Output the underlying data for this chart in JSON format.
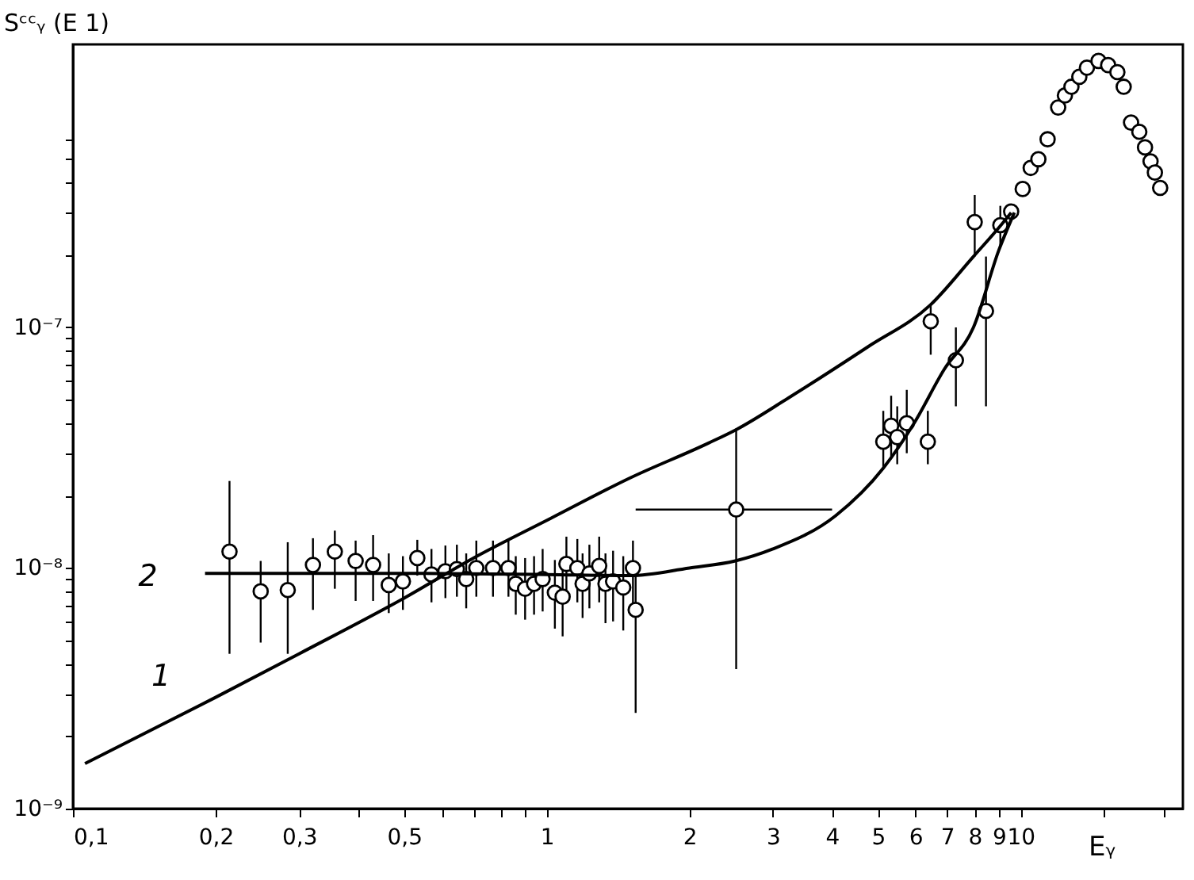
{
  "chart_data": {
    "type": "scatter",
    "xlabel": "Eᵧ",
    "ylabel": "Sᶜᶜᵧ (E 1)",
    "log": "xy",
    "xlim": [
      0.1,
      22
    ],
    "ylim": [
      1e-09,
      1.5e-06
    ],
    "xticks": [
      {
        "value": 0.1,
        "label": "0,1"
      },
      {
        "value": 0.2,
        "label": "0,2"
      },
      {
        "value": 0.3,
        "label": "0,3"
      },
      {
        "value": 0.4,
        "label": null
      },
      {
        "value": 0.5,
        "label": "0,5"
      },
      {
        "value": 0.6,
        "label": null
      },
      {
        "value": 0.7,
        "label": null
      },
      {
        "value": 0.8,
        "label": null
      },
      {
        "value": 0.9,
        "label": null
      },
      1,
      2,
      3,
      4,
      5,
      6,
      7,
      8,
      9,
      10,
      {
        "value": 15,
        "label": null
      },
      {
        "value": 20,
        "label": null
      }
    ],
    "yticks": [
      {
        "value": 1e-09,
        "label": "10⁻⁹"
      },
      {
        "value": 2e-09,
        "label": null
      },
      {
        "value": 3e-09,
        "label": null
      },
      {
        "value": 4e-09,
        "label": null
      },
      {
        "value": 5e-09,
        "label": null
      },
      {
        "value": 6e-09,
        "label": null
      },
      {
        "value": 7e-09,
        "label": null
      },
      {
        "value": 8e-09,
        "label": null
      },
      {
        "value": 9e-09,
        "label": null
      },
      {
        "value": 1e-08,
        "label": "10⁻⁸"
      },
      {
        "value": 2e-08,
        "label": null
      },
      {
        "value": 3e-08,
        "label": null
      },
      {
        "value": 4e-08,
        "label": null
      },
      {
        "value": 5e-08,
        "label": null
      },
      {
        "value": 6e-08,
        "label": null
      },
      {
        "value": 7e-08,
        "label": null
      },
      {
        "value": 8e-08,
        "label": null
      },
      {
        "value": 9e-08,
        "label": null
      },
      {
        "value": 1e-07,
        "label": "10⁻⁷"
      },
      {
        "value": 2e-07,
        "label": null
      },
      {
        "value": 3e-07,
        "label": null
      },
      {
        "value": 4e-07,
        "label": null
      },
      {
        "value": 5e-07,
        "label": null
      },
      {
        "value": 6e-07,
        "label": null
      }
    ],
    "series": [
      {
        "color": "#000000",
        "marker": "circle",
        "x": [
          0.214,
          0.249,
          0.284,
          0.321,
          0.357,
          0.395,
          0.43,
          0.464,
          0.497,
          0.533,
          0.571,
          0.611,
          0.646,
          0.676,
          0.71,
          0.77,
          0.83,
          0.86,
          0.9,
          0.94,
          0.98,
          1.04,
          1.08,
          1.1,
          1.16,
          1.19,
          1.23,
          1.29,
          1.33,
          1.38,
          1.45,
          1.52,
          1.54,
          2.51,
          5.13,
          5.33,
          5.49,
          5.75,
          6.37,
          6.46,
          7.3,
          8.0,
          8.45,
          9.06,
          9.55,
          10.1,
          10.5,
          10.9,
          11.4,
          12.0,
          12.4,
          12.8,
          13.3,
          13.8,
          14.6,
          15.3,
          16.0,
          16.5,
          17.1,
          17.8,
          18.3,
          18.8,
          19.2,
          19.7
        ],
        "values": [
          1.17e-08,
          8e-09,
          8.1e-09,
          1.03e-08,
          1.17e-08,
          1.07e-08,
          1.03e-08,
          8.5e-09,
          8.8e-09,
          1.1e-08,
          9.4e-09,
          9.7e-09,
          9.9e-09,
          9e-09,
          1e-08,
          1e-08,
          1e-08,
          8.6e-09,
          8.2e-09,
          8.6e-09,
          9e-09,
          7.9e-09,
          7.6e-09,
          1.04e-08,
          1e-08,
          8.6e-09,
          9.5e-09,
          1.02e-08,
          8.6e-09,
          8.8e-09,
          8.3e-09,
          1e-08,
          6.7e-09,
          1.75e-08,
          3.35e-08,
          3.9e-08,
          3.5e-08,
          4e-08,
          3.35e-08,
          1.06e-07,
          7.3e-08,
          2.74e-07,
          1.17e-07,
          2.66e-07,
          3.03e-07,
          3.76e-07,
          4.6e-07,
          5e-07,
          6.05e-07,
          8.2e-07,
          9.2e-07,
          1e-06,
          1.1e-06,
          1.2e-06,
          1.28e-06,
          1.23e-06,
          1.15e-06,
          1e-06,
          7.1e-07,
          6.5e-07,
          5.6e-07,
          4.9e-07,
          4.4e-07,
          3.8e-07
        ],
        "errors": [
          [
            4.4e-09,
            2.3e-08
          ],
          [
            4.9e-09,
            1.07e-08
          ],
          [
            4.4e-09,
            1.28e-08
          ],
          [
            6.7e-09,
            1.33e-08
          ],
          [
            8.2e-09,
            1.43e-08
          ],
          [
            7.3e-09,
            1.3e-08
          ],
          [
            7.3e-09,
            1.37e-08
          ],
          [
            6.5e-09,
            1.15e-08
          ],
          [
            6.7e-09,
            1.12e-08
          ],
          [
            9.3e-09,
            1.31e-08
          ],
          [
            7.2e-09,
            1.2e-08
          ],
          [
            7.5e-09,
            1.24e-08
          ],
          [
            7.6e-09,
            1.25e-08
          ],
          [
            6.8e-09,
            1.15e-08
          ],
          [
            7.6e-09,
            1.3e-08
          ],
          [
            7.6e-09,
            1.3e-08
          ],
          [
            7.6e-09,
            1.3e-08
          ],
          [
            6.4e-09,
            1.12e-08
          ],
          [
            6.1e-09,
            1.1e-08
          ],
          [
            6.4e-09,
            1.12e-08
          ],
          [
            6.6e-09,
            1.2e-08
          ],
          [
            5.6e-09,
            1.08e-08
          ],
          [
            5.2e-09,
            1.05e-08
          ],
          [
            7.6e-09,
            1.35e-08
          ],
          [
            7.2e-09,
            1.32e-08
          ],
          [
            6.2e-09,
            1.15e-08
          ],
          [
            6.8e-09,
            1.25e-08
          ],
          [
            7.2e-09,
            1.35e-08
          ],
          [
            5.9e-09,
            1.15e-08
          ],
          [
            6e-09,
            1.18e-08
          ],
          [
            5.5e-09,
            1.12e-08
          ],
          [
            7e-09,
            1.3e-08
          ],
          [
            2.5e-09,
            9.3e-09
          ],
          [
            3.8e-09,
            3.8e-08
          ],
          [
            2.6e-08,
            4.5e-08
          ],
          [
            2.9e-08,
            5.2e-08
          ],
          [
            2.7e-08,
            4.7e-08
          ],
          [
            3e-08,
            5.5e-08
          ],
          [
            2.7e-08,
            4.5e-08
          ],
          [
            7.7e-08,
            1.24e-07
          ],
          [
            4.7e-08,
            1e-07
          ],
          [
            1.97e-07,
            3.55e-07
          ],
          [
            4.7e-08,
            1.97e-07
          ],
          [
            2.2e-07,
            3.2e-07
          ],
          null,
          null,
          null,
          null,
          null,
          null,
          null,
          null,
          null,
          null,
          null,
          null,
          null,
          null,
          null,
          null,
          null,
          null,
          null,
          null
        ],
        "xerrors": [
          null,
          null,
          null,
          null,
          null,
          null,
          null,
          null,
          null,
          null,
          null,
          null,
          null,
          null,
          null,
          null,
          null,
          null,
          null,
          null,
          null,
          null,
          null,
          null,
          null,
          null,
          null,
          null,
          null,
          null,
          null,
          null,
          null,
          [
            1.54,
            4.0
          ],
          null,
          null,
          null,
          null,
          null,
          null,
          null,
          null,
          null,
          null,
          null,
          null,
          null,
          null,
          null,
          null,
          null,
          null,
          null,
          null,
          null,
          null,
          null,
          null,
          null,
          null,
          null,
          null,
          null,
          null
        ]
      },
      {
        "type": "line",
        "name": "1",
        "color": "#000000",
        "line_style": "solid",
        "x": [
          0.106,
          0.2,
          0.3,
          0.5,
          0.7,
          1.02,
          1.5,
          2.19,
          2.51,
          3.24,
          4.76,
          6.45,
          7.95,
          9.0,
          9.55
        ],
        "values": [
          1.54e-09,
          2.9e-09,
          4.4e-09,
          7.5e-09,
          1.1e-08,
          1.61e-08,
          2.37e-08,
          3.3e-08,
          3.76e-08,
          5.1e-08,
          8.3e-08,
          1.24e-07,
          1.97e-07,
          2.6e-07,
          3e-07
        ]
      },
      {
        "type": "line",
        "name": "2",
        "color": "#000000",
        "line_style": "solid",
        "x": [
          0.19,
          0.5,
          1.0,
          1.5,
          2.0,
          2.5,
          3.0,
          4.07,
          5.13,
          5.96,
          6.9,
          7.95,
          9.0,
          9.7
        ],
        "values": [
          9.5e-09,
          9.5e-09,
          9.4e-09,
          9.3e-09,
          1e-08,
          1.07e-08,
          1.2e-08,
          1.65e-08,
          2.6e-08,
          4e-08,
          6.7e-08,
          1e-07,
          2.1e-07,
          3e-07
        ]
      }
    ]
  }
}
